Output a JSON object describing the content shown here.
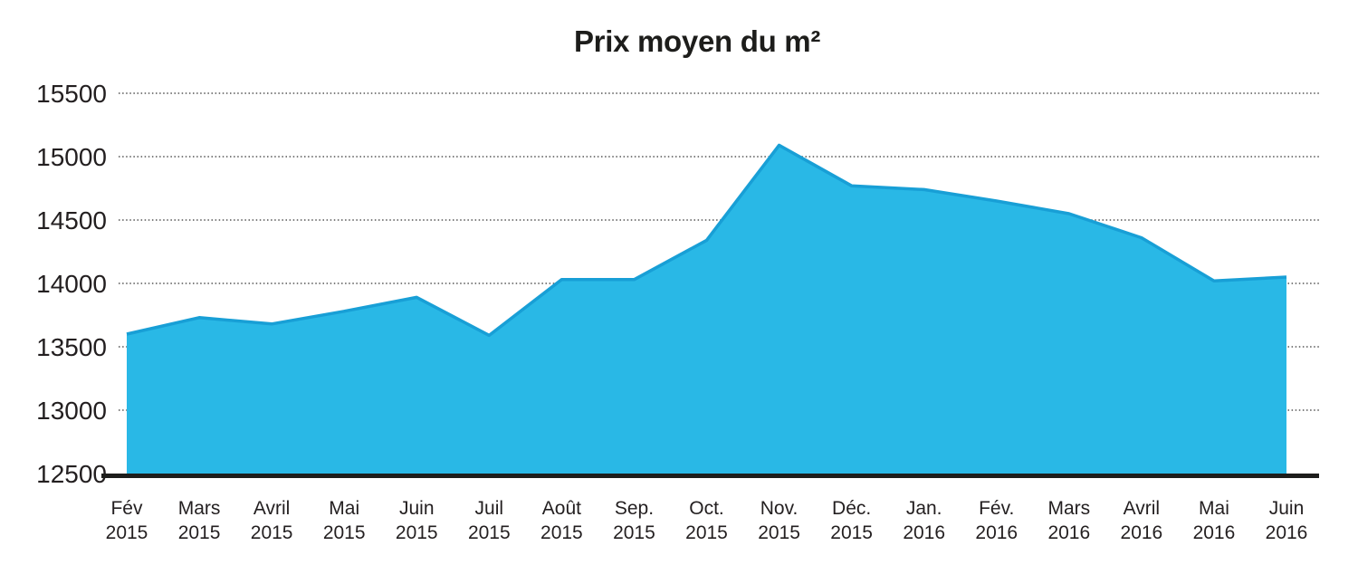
{
  "title": "Prix moyen du m²",
  "chart_data": {
    "type": "area",
    "title": "Prix moyen du m²",
    "x_categories": [
      [
        "Fév",
        "2015"
      ],
      [
        "Mars",
        "2015"
      ],
      [
        "Avril",
        "2015"
      ],
      [
        "Mai",
        "2015"
      ],
      [
        "Juin",
        "2015"
      ],
      [
        "Juil",
        "2015"
      ],
      [
        "Août",
        "2015"
      ],
      [
        "Sep.",
        "2015"
      ],
      [
        "Oct.",
        "2015"
      ],
      [
        "Nov.",
        "2015"
      ],
      [
        "Déc.",
        "2015"
      ],
      [
        "Jan.",
        "2016"
      ],
      [
        "Fév.",
        "2016"
      ],
      [
        "Mars",
        "2016"
      ],
      [
        "Avril",
        "2016"
      ],
      [
        "Mai",
        "2016"
      ],
      [
        "Juin",
        "2016"
      ]
    ],
    "values": [
      13600,
      13730,
      13680,
      13780,
      13890,
      13590,
      14030,
      14030,
      14340,
      15090,
      14770,
      14740,
      14650,
      14550,
      14360,
      14020,
      14050
    ],
    "xlabel": "",
    "ylabel": "",
    "ylim": [
      12500,
      15500
    ],
    "yticks": [
      15500,
      15000,
      14500,
      14000,
      13500,
      13000,
      12500
    ],
    "grid": "horizontal-dotted",
    "legend": "none",
    "colors": {
      "area_fill": "#29b8e6",
      "line": "#189fd6",
      "axis": "#1d1d1b",
      "grid": "#555555",
      "text": "#231f20"
    }
  }
}
